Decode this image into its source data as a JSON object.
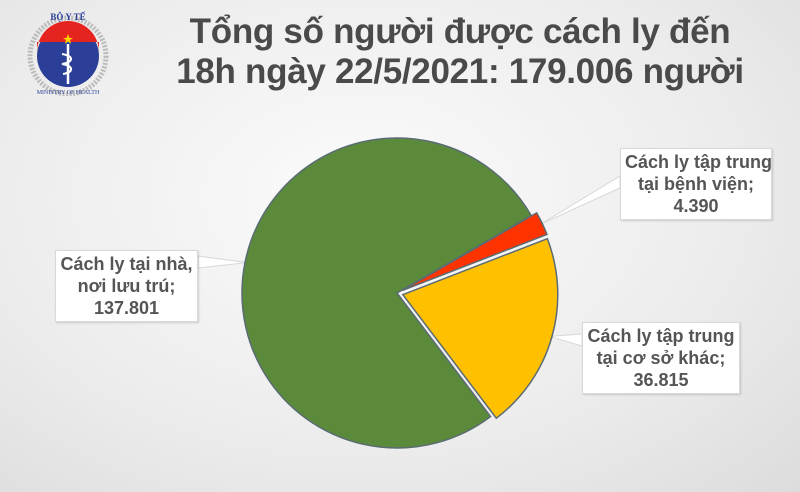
{
  "logo": {
    "top_text": "BỘ Y TẾ",
    "bottom_text": "MINISTRY OF HEALTH"
  },
  "title": {
    "line1": "Tổng số người được cách ly đến",
    "line2": "18h ngày 22/5/2021: 179.006 người"
  },
  "chart_data": {
    "type": "pie",
    "title": "Tổng số người được cách ly đến 18h ngày 22/5/2021: 179.006 người",
    "total": 179006,
    "slices": [
      {
        "label_line1": "Cách ly tập trung",
        "label_line2": "tại bệnh viện;",
        "value_text": "4.390",
        "value": 4390,
        "color": "#ff3300",
        "exploded": true
      },
      {
        "label_line1": "Cách ly tập trung",
        "label_line2": "tại cơ sở khác;",
        "value_text": "36.815",
        "value": 36815,
        "color": "#ffc000",
        "exploded": true
      },
      {
        "label_line1": "Cách ly tại nhà,",
        "label_line2": "nơi lưu trú;",
        "value_text": "137.801",
        "value": 137801,
        "color": "#5a8a3a",
        "exploded": false
      }
    ],
    "legend": "callout-labels"
  }
}
